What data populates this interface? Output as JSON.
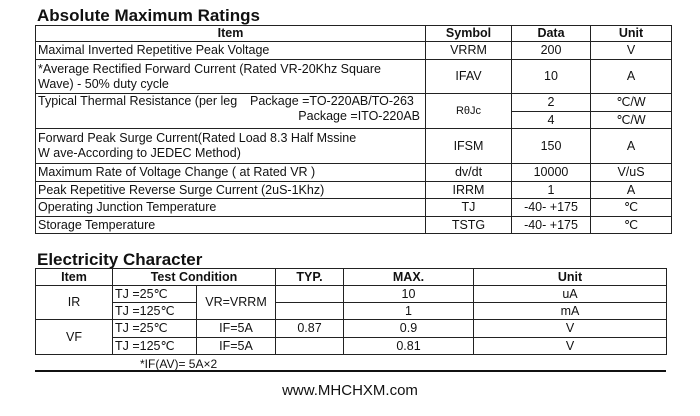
{
  "amr": {
    "title": "Absolute Maximum Ratings",
    "headers": [
      "Item",
      "Symbol",
      "Data",
      "Unit"
    ],
    "rows": [
      {
        "item": "Maximal Inverted Repetitive  Peak Voltage",
        "symbol": "VRRM",
        "data": "200",
        "unit": "V"
      },
      {
        "item": "*Average Rectified Forward Current (Rated VR-20Khz Square",
        "item2": "Wave) - 50% duty cycle",
        "symbol": "IFAV",
        "data": "10",
        "unit": "A"
      },
      {
        "item": "Typical Thermal Resistance (per leg",
        "pkg1": "Package =TO-220AB/TO-263",
        "pkg2": "Package =ITO-220AB",
        "symbol": "RθJc",
        "data1": "2",
        "data2": "4",
        "unit1": "℃/W",
        "unit2": "℃/W"
      },
      {
        "item": "Forward Peak Surge Current(Rated Load 8.3 Half Mssine",
        "item2": "W ave-According to JEDEC Method)",
        "symbol": "IFSM",
        "data": "150",
        "unit": "A"
      },
      {
        "item": "Maximum Rate of Voltage Change ( at Rated VR )",
        "symbol": "dv/dt",
        "data": "10000",
        "unit": "V/uS"
      },
      {
        "item": "Peak Repetitive Reverse Surge Current (2uS-1Khz)",
        "symbol": "IRRM",
        "data": "1",
        "unit": "A"
      },
      {
        "item": "Operating Junction Temperature",
        "symbol": "TJ",
        "data": "-40- +175",
        "unit": "℃"
      },
      {
        "item": "Storage Temperature",
        "symbol": "TSTG",
        "data": "-40- +175",
        "unit": "℃"
      }
    ]
  },
  "ec": {
    "title": "Electricity Character",
    "headers": [
      "Item",
      "Test  Condition",
      "TYP.",
      "MAX.",
      "Unit"
    ],
    "ir": {
      "item": "IR",
      "cond": "VR=VRRM",
      "t1": "TJ =25℃",
      "t2": "TJ =125℃",
      "max1": "10",
      "max2": "1",
      "unit1": "uA",
      "unit2": "mA"
    },
    "vf": {
      "item": "VF",
      "t1": "TJ =25℃",
      "t2": "TJ =125℃",
      "c1": "IF=5A",
      "c2": "IF=5A",
      "typ1": "0.87",
      "max1": "0.9",
      "max2": "0.81",
      "unit1": "V",
      "unit2": "V"
    },
    "note": "*IF(AV)= 5A×2"
  },
  "footer": {
    "url": "www.MHCHXM.com"
  }
}
